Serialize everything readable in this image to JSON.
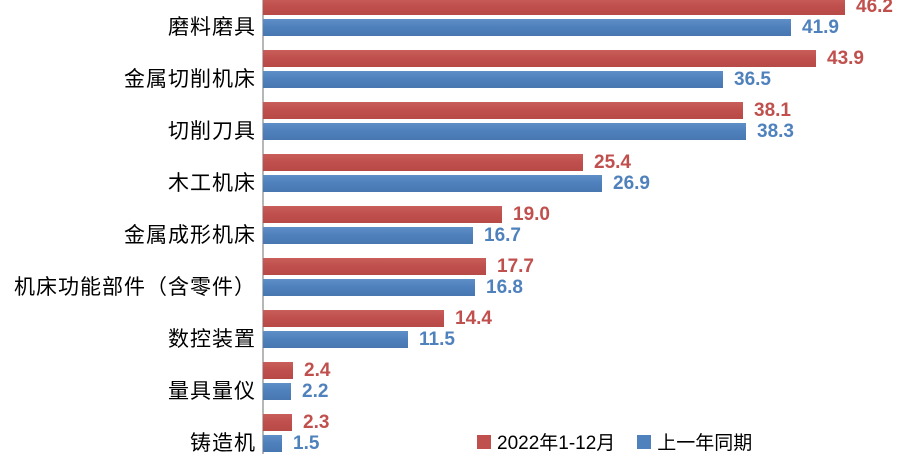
{
  "chart_data": {
    "type": "bar",
    "orientation": "horizontal",
    "title": "",
    "categories": [
      "磨料磨具",
      "金属切削机床",
      "切削刀具",
      "木工机床",
      "金属成形机床",
      "机床功能部件（含零件）",
      "数控装置",
      "量具量仪",
      "铸造机"
    ],
    "series": [
      {
        "name": "2022年1-12月",
        "color": "#c0504d",
        "values": [
          46.2,
          43.9,
          38.1,
          25.4,
          19.0,
          17.7,
          14.4,
          2.4,
          2.3
        ]
      },
      {
        "name": "上一年同期",
        "color": "#4f81bd",
        "values": [
          41.9,
          36.5,
          38.3,
          26.9,
          16.7,
          16.8,
          11.5,
          2.2,
          1.5
        ]
      }
    ],
    "value_label_decimals": 1,
    "value_labels_shown": true,
    "legend_position": "bottom-right",
    "grid": "off",
    "axis_color": "#b7b7b7",
    "xlim": [
      0,
      50
    ]
  }
}
